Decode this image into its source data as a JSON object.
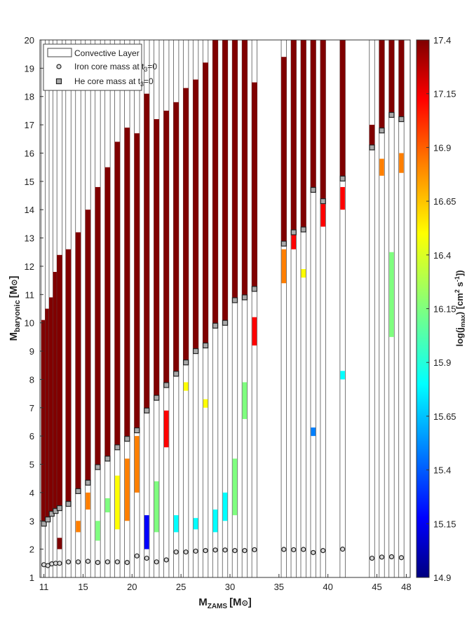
{
  "chart_data": {
    "type": "heatmap",
    "title": "",
    "xlabel": "M",
    "xlabel_sub": "ZAMS",
    "xlabel_unit": "[M",
    "xlabel_unit_close": "]",
    "ylabel": "M",
    "ylabel_sub": "baryonic",
    "ylabel_unit": "[M",
    "ylabel_unit_close": "]",
    "sun_symbol": "⊙",
    "xlim": [
      10.6,
      48.4
    ],
    "ylim": [
      1,
      20
    ],
    "x_ticks": [
      11,
      15,
      20,
      25,
      30,
      35,
      40,
      45,
      48
    ],
    "y_ticks": [
      1,
      2,
      3,
      4,
      5,
      6,
      7,
      8,
      9,
      10,
      11,
      12,
      13,
      14,
      15,
      16,
      17,
      18,
      19,
      20
    ],
    "colorbar": {
      "label": "log(j",
      "label_sub": "max",
      "label_unit": ") [cm",
      "label_unit_sup": "2",
      "label_unit_mid": " s",
      "label_unit_sup2": "-1",
      "label_unit_end": "])",
      "min": 14.9,
      "max": 17.4,
      "ticks": [
        17.4,
        17.15,
        16.9,
        16.65,
        16.4,
        16.15,
        15.9,
        15.65,
        15.4,
        15.15,
        14.9
      ],
      "colors": [
        "#00007f",
        "#0000ff",
        "#007fff",
        "#00ffff",
        "#7fff7f",
        "#ffff00",
        "#ff7f00",
        "#ff0000",
        "#7f0000"
      ]
    },
    "legend": {
      "convective": "Convective Layer",
      "iron": "Iron core mass at t",
      "iron_sub": "3",
      "iron_end": "=0",
      "he": "He core mass at t",
      "he_sub": "3",
      "he_end": "=0"
    },
    "models": [
      {
        "m": 11.0,
        "top": 10.1,
        "fe": 1.45,
        "he": 2.9
      },
      {
        "m": 11.4,
        "top": 10.5,
        "fe": 1.42,
        "he": 3.05
      },
      {
        "m": 11.8,
        "top": 10.9,
        "fe": 1.48,
        "he": 3.25
      },
      {
        "m": 12.2,
        "top": 11.8,
        "fe": 1.5,
        "he": 3.35
      },
      {
        "m": 12.6,
        "top": 12.4,
        "fe": 1.5,
        "he": 3.45
      },
      {
        "m": 13.5,
        "top": 12.6,
        "fe": 1.55,
        "he": 3.6
      },
      {
        "m": 14.5,
        "top": 13.2,
        "fe": 1.55,
        "he": 4.05
      },
      {
        "m": 15.5,
        "top": 14.0,
        "fe": 1.57,
        "he": 4.35
      },
      {
        "m": 16.5,
        "top": 14.8,
        "fe": 1.53,
        "he": 4.9
      },
      {
        "m": 17.5,
        "top": 15.5,
        "fe": 1.55,
        "he": 5.2
      },
      {
        "m": 18.5,
        "top": 16.4,
        "fe": 1.55,
        "he": 5.6
      },
      {
        "m": 19.5,
        "top": 16.9,
        "fe": 1.53,
        "he": 5.9
      },
      {
        "m": 20.5,
        "top": 16.7,
        "fe": 1.76,
        "he": 6.2
      },
      {
        "m": 21.5,
        "top": 18.1,
        "fe": 1.68,
        "he": 6.9
      },
      {
        "m": 22.5,
        "top": 17.2,
        "fe": 1.55,
        "he": 7.35
      },
      {
        "m": 23.5,
        "top": 17.5,
        "fe": 1.62,
        "he": 7.8
      },
      {
        "m": 24.5,
        "top": 17.8,
        "fe": 1.9,
        "he": 8.2
      },
      {
        "m": 25.5,
        "top": 18.3,
        "fe": 1.9,
        "he": 8.6
      },
      {
        "m": 26.5,
        "top": 18.6,
        "fe": 1.93,
        "he": 9.0
      },
      {
        "m": 27.5,
        "top": 19.2,
        "fe": 1.95,
        "he": 9.2
      },
      {
        "m": 28.5,
        "top": 20.0,
        "fe": 1.97,
        "he": 9.9
      },
      {
        "m": 29.5,
        "top": 20.0,
        "fe": 1.97,
        "he": 10.0
      },
      {
        "m": 30.5,
        "top": 20.0,
        "fe": 1.95,
        "he": 10.8
      },
      {
        "m": 31.5,
        "top": 20.0,
        "fe": 1.95,
        "he": 10.9
      },
      {
        "m": 32.5,
        "top": 18.5,
        "fe": 1.98,
        "he": 11.2
      },
      {
        "m": 35.5,
        "top": 19.4,
        "fe": 1.99,
        "he": 12.8
      },
      {
        "m": 36.5,
        "top": 20.0,
        "fe": 1.98,
        "he": 13.2
      },
      {
        "m": 37.5,
        "top": 20.0,
        "fe": 1.99,
        "he": 13.3
      },
      {
        "m": 38.5,
        "top": 20.0,
        "fe": 1.88,
        "he": 14.7
      },
      {
        "m": 39.5,
        "top": 20.0,
        "fe": 1.95,
        "he": 14.3
      },
      {
        "m": 41.5,
        "top": 20.0,
        "fe": 2.0,
        "he": 15.1
      },
      {
        "m": 44.5,
        "top": 17.0,
        "fe": 1.68,
        "he": 16.2
      },
      {
        "m": 45.5,
        "top": 20.0,
        "fe": 1.72,
        "he": 16.8
      },
      {
        "m": 46.5,
        "top": 20.0,
        "fe": 1.73,
        "he": 17.35
      },
      {
        "m": 47.5,
        "top": 20.0,
        "fe": 1.7,
        "he": 17.2
      }
    ],
    "patches": [
      {
        "m": 12.6,
        "y0": 2.0,
        "y1": 2.4,
        "v": 17.3
      },
      {
        "m": 14.5,
        "y0": 2.6,
        "y1": 3.0,
        "v": 16.7
      },
      {
        "m": 15.5,
        "y0": 3.4,
        "y1": 4.0,
        "v": 16.8
      },
      {
        "m": 16.5,
        "y0": 2.3,
        "y1": 3.0,
        "v": 16.3
      },
      {
        "m": 17.5,
        "y0": 3.3,
        "y1": 3.8,
        "v": 16.2
      },
      {
        "m": 18.5,
        "y0": 2.7,
        "y1": 4.6,
        "v": 16.6
      },
      {
        "m": 19.5,
        "y0": 3.0,
        "y1": 5.2,
        "v": 16.7
      },
      {
        "m": 20.5,
        "y0": 4.0,
        "y1": 6.0,
        "v": 16.8
      },
      {
        "m": 21.5,
        "y0": 2.0,
        "y1": 3.2,
        "v": 15.3
      },
      {
        "m": 22.5,
        "y0": 2.6,
        "y1": 4.4,
        "v": 16.1
      },
      {
        "m": 23.5,
        "y0": 5.6,
        "y1": 6.9,
        "v": 17.1
      },
      {
        "m": 24.5,
        "y0": 2.6,
        "y1": 3.2,
        "v": 15.9
      },
      {
        "m": 25.5,
        "y0": 7.6,
        "y1": 7.9,
        "v": 16.5
      },
      {
        "m": 26.5,
        "y0": 2.7,
        "y1": 3.1,
        "v": 15.8
      },
      {
        "m": 27.5,
        "y0": 7.0,
        "y1": 7.3,
        "v": 16.6
      },
      {
        "m": 28.5,
        "y0": 2.6,
        "y1": 3.4,
        "v": 15.9
      },
      {
        "m": 29.5,
        "y0": 3.0,
        "y1": 4.0,
        "v": 15.9
      },
      {
        "m": 30.5,
        "y0": 3.2,
        "y1": 5.2,
        "v": 16.2
      },
      {
        "m": 31.5,
        "y0": 6.6,
        "y1": 7.9,
        "v": 16.3
      },
      {
        "m": 32.5,
        "y0": 9.2,
        "y1": 10.2,
        "v": 17.0
      },
      {
        "m": 35.5,
        "y0": 11.4,
        "y1": 12.6,
        "v": 16.8
      },
      {
        "m": 36.5,
        "y0": 12.6,
        "y1": 13.2,
        "v": 17.2
      },
      {
        "m": 37.5,
        "y0": 11.6,
        "y1": 11.9,
        "v": 16.5
      },
      {
        "m": 38.5,
        "y0": 6.0,
        "y1": 6.3,
        "v": 15.6
      },
      {
        "m": 39.5,
        "y0": 13.4,
        "y1": 14.2,
        "v": 17.0
      },
      {
        "m": 41.5,
        "y0": 14.0,
        "y1": 14.8,
        "v": 17.2
      },
      {
        "m": 41.5,
        "y0": 8.0,
        "y1": 8.3,
        "v": 15.7
      },
      {
        "m": 45.5,
        "y0": 15.2,
        "y1": 15.8,
        "v": 16.7
      },
      {
        "m": 46.5,
        "y0": 9.5,
        "y1": 12.5,
        "v": 16.2
      },
      {
        "m": 47.5,
        "y0": 15.3,
        "y1": 16.0,
        "v": 16.8
      }
    ]
  }
}
